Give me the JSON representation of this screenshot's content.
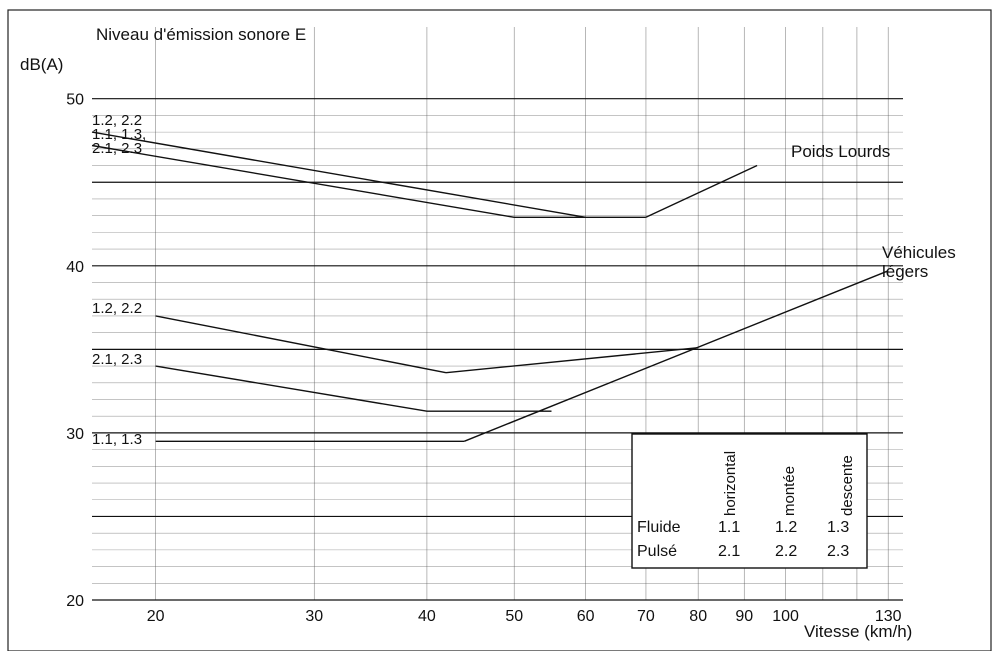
{
  "chart_data": {
    "type": "line",
    "title": "Niveau d'émission sonore E",
    "ylabel": "dB(A)",
    "xlabel": "Vitesse (km/h)",
    "x_scale": "log",
    "xlim": [
      17,
      135
    ],
    "ylim": [
      20,
      51
    ],
    "x_ticks": [
      20,
      30,
      40,
      50,
      60,
      70,
      80,
      90,
      100,
      130
    ],
    "x_tick_labels": [
      "20",
      "30",
      "40",
      "50",
      "60",
      "70",
      "80",
      "90",
      "100",
      "130"
    ],
    "y_ticks": [
      20,
      30,
      40,
      50
    ],
    "y_tick_labels": [
      "20",
      "30",
      "40",
      "50"
    ],
    "major_y_lines": [
      25,
      30,
      35,
      40,
      45,
      50
    ],
    "grid": true,
    "series": [
      {
        "group": "Poids Lourds",
        "label": "1.2, 2.2",
        "x": [
          17,
          60
        ],
        "y": [
          48,
          42.9
        ]
      },
      {
        "group": "Poids Lourds",
        "label": "1.1, 1.3, 2.1, 2.3",
        "x": [
          17,
          50,
          70
        ],
        "y": [
          47.2,
          42.9,
          42.9
        ]
      },
      {
        "group": "Poids Lourds",
        "label": "",
        "x": [
          70,
          93
        ],
        "y": [
          42.9,
          46
        ]
      },
      {
        "group": "Véhicules légers",
        "label": "1.2, 2.2",
        "x": [
          20,
          42
        ],
        "y": [
          37,
          33.6
        ]
      },
      {
        "group": "Véhicules légers",
        "label": "",
        "x": [
          42,
          80
        ],
        "y": [
          33.6,
          35.1
        ]
      },
      {
        "group": "Véhicules légers",
        "label": "2.1, 2.3",
        "x": [
          20,
          40,
          55
        ],
        "y": [
          34,
          31.3,
          31.3
        ]
      },
      {
        "group": "Véhicules légers",
        "label": "1.1, 1.3",
        "x": [
          20,
          44
        ],
        "y": [
          29.5,
          29.5
        ]
      },
      {
        "group": "Véhicules légers",
        "label": "",
        "x": [
          44,
          130
        ],
        "y": [
          29.5,
          39.7
        ]
      }
    ],
    "group_labels": {
      "heavy": "Poids Lourds",
      "light_line1": "Véhicules",
      "light_line2": "légers"
    },
    "left_labels": {
      "pl_top": "1.2, 2.2",
      "pl_mid1": "1.1, 1.3,",
      "pl_mid2": "2.1, 2.3",
      "vl_a": "1.2, 2.2",
      "vl_b": "2.1, 2.3",
      "vl_c": "1.1, 1.3"
    },
    "legend_table": {
      "col_headers": [
        "horizontal",
        "montée",
        "descente"
      ],
      "rows": [
        {
          "label": "Fluide",
          "values": [
            "1.1",
            "1.2",
            "1.3"
          ]
        },
        {
          "label": "Pulsé",
          "values": [
            "2.1",
            "2.2",
            "2.3"
          ]
        }
      ]
    }
  }
}
